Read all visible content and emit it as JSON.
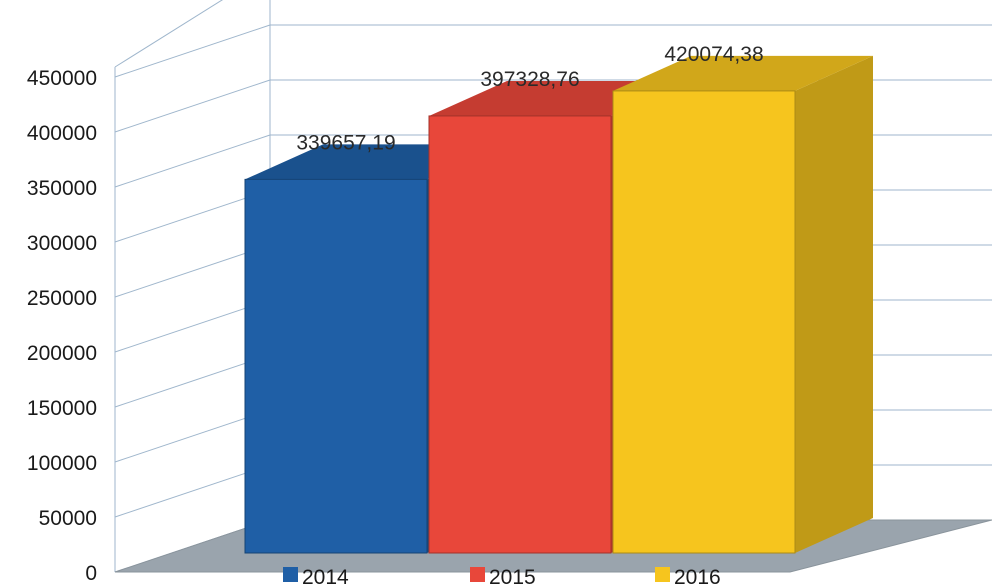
{
  "chart_data": {
    "type": "bar",
    "title": "",
    "xlabel": "",
    "ylabel": "",
    "ylim": [
      0,
      450000
    ],
    "yticks": [
      0,
      50000,
      100000,
      150000,
      200000,
      250000,
      300000,
      350000,
      400000,
      450000
    ],
    "grid": true,
    "legend_position": "bottom",
    "series": [
      {
        "name": "2014",
        "value": 339657.19,
        "label": "339657,19",
        "color": "#1f5fa6"
      },
      {
        "name": "2015",
        "value": 397328.76,
        "label": "397328,76",
        "color": "#e8473a"
      },
      {
        "name": "2016",
        "value": 420074.38,
        "label": "420074,38",
        "color": "#f6c51e"
      }
    ]
  }
}
